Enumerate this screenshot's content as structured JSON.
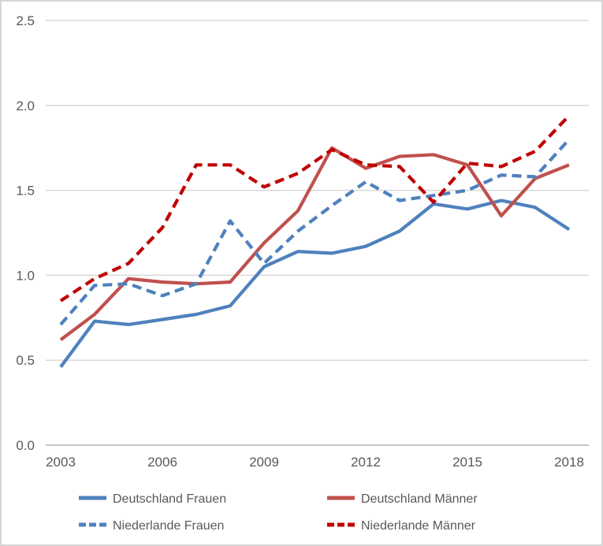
{
  "window": {
    "background_color": "#ffffff",
    "border_color": "#d6d6d6"
  },
  "chart_data": {
    "type": "line",
    "title": "",
    "xlabel": "",
    "ylabel": "",
    "x": [
      2003,
      2004,
      2005,
      2006,
      2007,
      2008,
      2009,
      2010,
      2011,
      2012,
      2013,
      2014,
      2015,
      2016,
      2017,
      2018
    ],
    "x_tick_labels": [
      "2003",
      "2006",
      "2009",
      "2012",
      "2015",
      "2018"
    ],
    "x_tick_years": [
      2003,
      2006,
      2009,
      2012,
      2015,
      2018
    ],
    "xlim": [
      2003,
      2018
    ],
    "y_ticks": [
      0.0,
      0.5,
      1.0,
      1.5,
      2.0,
      2.5
    ],
    "y_tick_labels": [
      "0.0",
      "0.5",
      "1.0",
      "1.5",
      "2.0",
      "2.5"
    ],
    "ylim": [
      0,
      2.5
    ],
    "grid": "horizontal",
    "gridline_color": "#d9d9d9",
    "axis_line_color": "#bfbfbf",
    "tick_label_color": "#595959",
    "legend_position": "bottom",
    "legend_text_color": "#595959",
    "series": [
      {
        "name": "Deutschland Frauen",
        "color": "#4F81BD",
        "style": "solid",
        "values": [
          0.46,
          0.73,
          0.71,
          0.74,
          0.77,
          0.82,
          1.05,
          1.14,
          1.13,
          1.17,
          1.26,
          1.42,
          1.39,
          1.44,
          1.4,
          1.27
        ]
      },
      {
        "name": "Deutschland Männer",
        "color": "#C0504D",
        "style": "solid",
        "values": [
          0.62,
          0.77,
          0.98,
          0.96,
          0.95,
          0.96,
          1.19,
          1.38,
          1.75,
          1.63,
          1.7,
          1.71,
          1.65,
          1.35,
          1.57,
          1.65
        ]
      },
      {
        "name": "Niederlande Frauen",
        "color": "#4F81BD",
        "style": "dashed",
        "values": [
          0.71,
          0.94,
          0.95,
          0.88,
          0.95,
          1.32,
          1.07,
          1.26,
          1.41,
          1.55,
          1.44,
          1.47,
          1.5,
          1.59,
          1.58,
          1.8
        ]
      },
      {
        "name": "Niederlande Männer",
        "color": "#C00000",
        "style": "dashed",
        "values": [
          0.85,
          0.98,
          1.07,
          1.28,
          1.65,
          1.65,
          1.52,
          1.6,
          1.74,
          1.65,
          1.64,
          1.43,
          1.66,
          1.64,
          1.73,
          1.94
        ]
      }
    ]
  }
}
